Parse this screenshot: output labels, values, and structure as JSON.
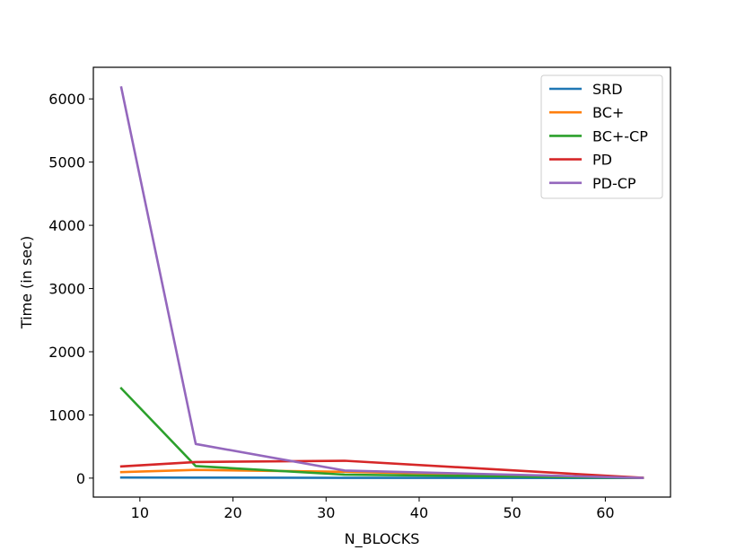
{
  "chart_data": {
    "type": "line",
    "xlabel": "N_BLOCKS",
    "ylabel": "Time (in sec)",
    "xlim": [
      5,
      67
    ],
    "ylim": [
      -300,
      6500
    ],
    "xticks": [
      10,
      20,
      30,
      40,
      50,
      60
    ],
    "yticks": [
      0,
      1000,
      2000,
      3000,
      4000,
      5000,
      6000
    ],
    "grid": false,
    "legend_position": "top-right",
    "series": [
      {
        "name": "SRD",
        "color": "#1f77b4",
        "x": [
          8,
          16,
          32,
          64
        ],
        "y": [
          10,
          8,
          5,
          2
        ]
      },
      {
        "name": "BC+",
        "color": "#ff7f0e",
        "x": [
          8,
          16,
          32,
          64
        ],
        "y": [
          95,
          130,
          100,
          3
        ]
      },
      {
        "name": "BC+-CP",
        "color": "#2ca02c",
        "x": [
          8,
          16,
          32,
          64
        ],
        "y": [
          1420,
          190,
          55,
          3
        ]
      },
      {
        "name": "PD",
        "color": "#d62728",
        "x": [
          8,
          16,
          32,
          64
        ],
        "y": [
          185,
          255,
          275,
          5
        ]
      },
      {
        "name": "PD-CP",
        "color": "#9467bd",
        "x": [
          8,
          16,
          32,
          64
        ],
        "y": [
          6180,
          540,
          120,
          3
        ]
      }
    ]
  }
}
